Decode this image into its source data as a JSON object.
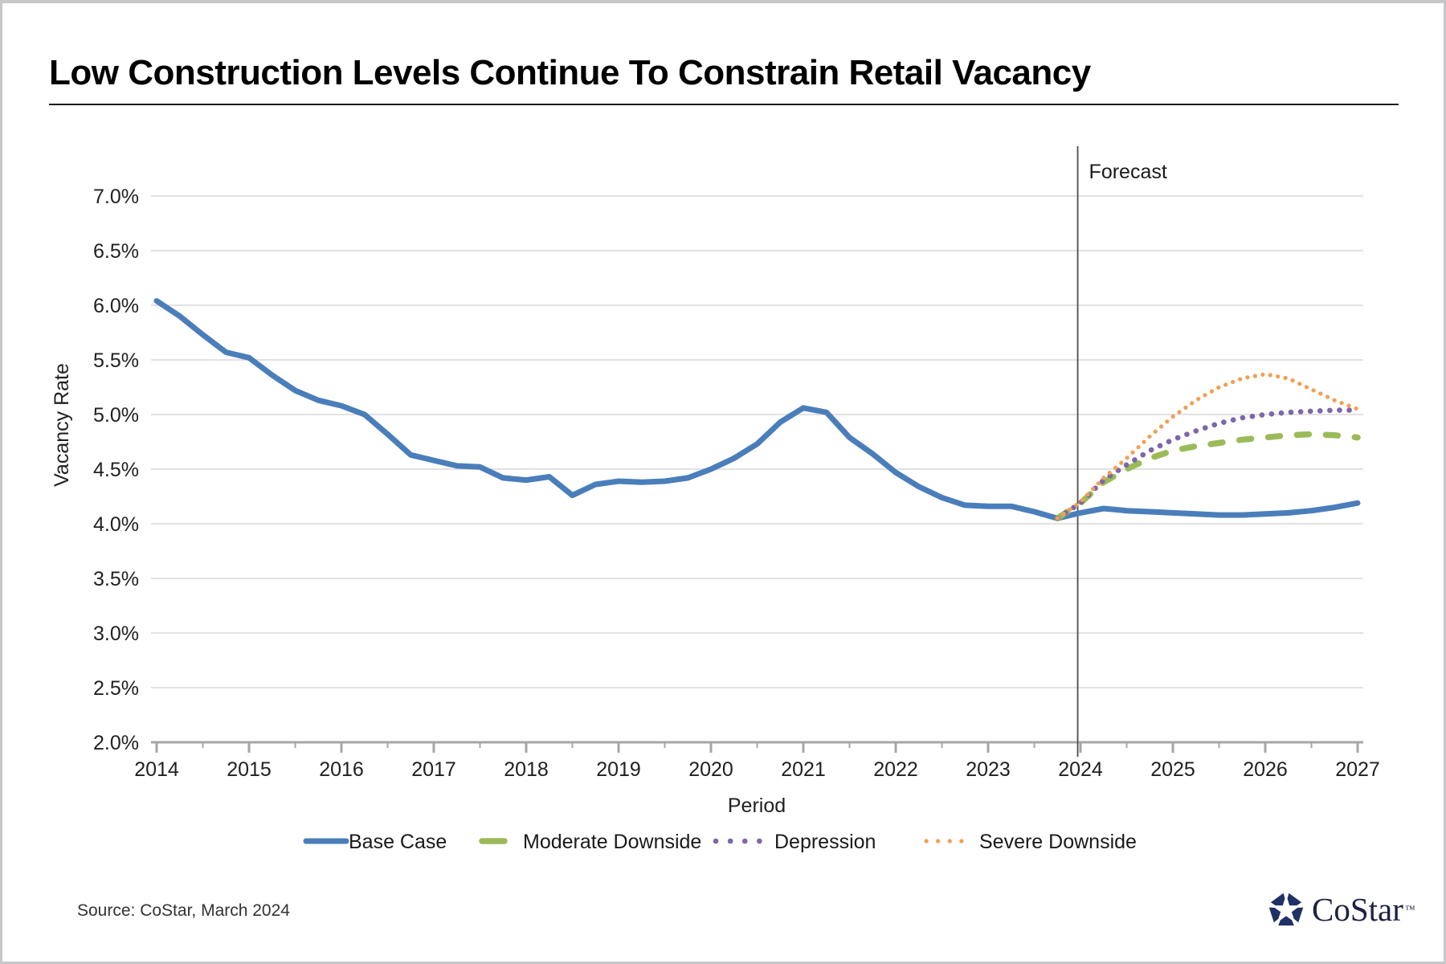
{
  "header": {
    "title": "Low Construction Levels Continue To Constrain Retail Vacancy"
  },
  "footer": {
    "source": "Source: CoStar, March 2024",
    "logo_text": "CoStar",
    "logo_tm": "™"
  },
  "logo": {
    "icon_color": "#203165"
  },
  "chart_data": {
    "type": "line",
    "title": "Low Construction Levels Continue To Constrain Retail Vacancy",
    "xlabel": "Period",
    "ylabel": "Vacancy Rate",
    "xlim": [
      2014,
      2027
    ],
    "x_ticks": [
      2014,
      2015,
      2016,
      2017,
      2018,
      2019,
      2020,
      2021,
      2022,
      2023,
      2024,
      2025,
      2026,
      2027
    ],
    "ylim": [
      2.0,
      7.0
    ],
    "ytick_step": 0.5,
    "ytick_suffix": "%",
    "grid": "horizontal-only",
    "legend_position": "bottom",
    "forecast_divider": {
      "x": 2023.97,
      "label": "Forecast"
    },
    "series": [
      {
        "name": "Base Case",
        "color": "#4a7ebb",
        "style": "solid",
        "x_start": 2014.0,
        "x_step": 0.25,
        "values": [
          6.04,
          5.9,
          5.73,
          5.57,
          5.52,
          5.36,
          5.22,
          5.13,
          5.08,
          5.0,
          4.82,
          4.63,
          4.58,
          4.53,
          4.52,
          4.42,
          4.4,
          4.43,
          4.26,
          4.36,
          4.39,
          4.38,
          4.39,
          4.42,
          4.5,
          4.6,
          4.73,
          4.93,
          5.06,
          5.02,
          4.79,
          4.64,
          4.47,
          4.34,
          4.24,
          4.17,
          4.16,
          4.16,
          4.11,
          4.05,
          4.1,
          4.14,
          4.12,
          4.11,
          4.1,
          4.09,
          4.08,
          4.08,
          4.09,
          4.1,
          4.12,
          4.15,
          4.19
        ]
      },
      {
        "name": "Moderate Downside",
        "color": "#9bbb59",
        "style": "dashed",
        "x_start": 2023.75,
        "x_step": 0.25,
        "values": [
          4.05,
          4.19,
          4.38,
          4.5,
          4.6,
          4.67,
          4.71,
          4.74,
          4.77,
          4.79,
          4.81,
          4.82,
          4.81,
          4.79
        ]
      },
      {
        "name": "Depression",
        "color": "#7d67a9",
        "style": "dotted-lg",
        "x_start": 2023.75,
        "x_step": 0.25,
        "values": [
          4.05,
          4.19,
          4.4,
          4.54,
          4.67,
          4.77,
          4.85,
          4.92,
          4.97,
          5.0,
          5.02,
          5.03,
          5.04,
          5.04
        ]
      },
      {
        "name": "Severe Downside",
        "color": "#f0a155",
        "style": "dotted-sm",
        "x_start": 2023.75,
        "x_step": 0.25,
        "values": [
          4.05,
          4.2,
          4.42,
          4.6,
          4.8,
          4.98,
          5.13,
          5.25,
          5.33,
          5.37,
          5.33,
          5.23,
          5.13,
          5.05
        ]
      }
    ],
    "colors": {
      "gridline": "#d9d9d9",
      "axis": "#a6a6a6",
      "tick_label": "#212121",
      "axis_title": "#212121",
      "forecast_line": "#4d4d4d",
      "legend_text": "#1a1a1a"
    }
  }
}
